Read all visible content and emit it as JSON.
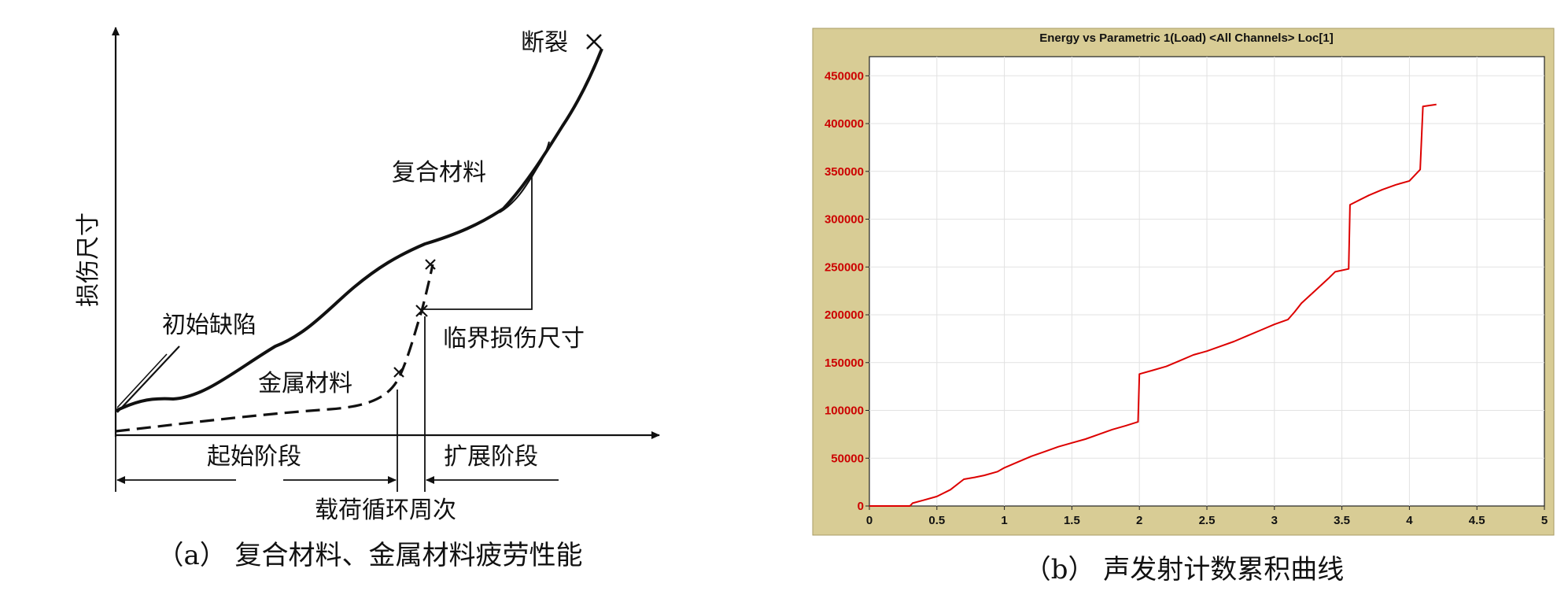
{
  "chart_data": [
    {
      "type": "line",
      "caption": "（a） 复合材料、金属材料疲劳性能",
      "ylabel": "损伤尺寸",
      "xlabel": "载荷循环周次",
      "annotations": {
        "fracture": "断裂",
        "composite": "复合材料",
        "initial_defect": "初始缺陷",
        "metal": "金属材料",
        "critical_size": "临界损伤尺寸",
        "initiation_stage": "起始阶段",
        "propagation_stage": "扩展阶段"
      },
      "series": [
        {
          "name": "复合材料",
          "style": "solid",
          "x": [
            0,
            0.05,
            0.1,
            0.2,
            0.28,
            0.4,
            0.5,
            0.6,
            0.7,
            0.78,
            0.84,
            0.9,
            1.0
          ],
          "y": [
            0.06,
            0.08,
            0.09,
            0.14,
            0.21,
            0.32,
            0.44,
            0.52,
            0.56,
            0.62,
            0.72,
            0.86,
            1.0
          ]
        },
        {
          "name": "金属材料",
          "style": "dashed",
          "x": [
            0,
            0.1,
            0.2,
            0.3,
            0.4,
            0.48,
            0.52,
            0.55,
            0.57,
            0.58
          ],
          "y": [
            0.01,
            0.025,
            0.04,
            0.055,
            0.075,
            0.12,
            0.2,
            0.34,
            0.44,
            0.5
          ]
        }
      ]
    },
    {
      "type": "line",
      "title": "Energy vs Parametric 1(Load) <All Channels> Loc[1]",
      "caption": "（b） 声发射计数累积曲线",
      "xlim": [
        0,
        5
      ],
      "ylim": [
        0,
        470000
      ],
      "x_ticks": [
        "0",
        "0.5",
        "1",
        "1.5",
        "2",
        "2.5",
        "3",
        "3.5",
        "4",
        "4.5",
        "5"
      ],
      "y_ticks": [
        "0",
        "50000",
        "100000",
        "150000",
        "200000",
        "250000",
        "300000",
        "350000",
        "400000",
        "450000"
      ],
      "grid": true,
      "colors": {
        "line": "#dd0000",
        "frame": "#d8cc95",
        "ytick": "#cc0000"
      },
      "series": [
        {
          "x": [
            0,
            0.3,
            0.32,
            0.4,
            0.5,
            0.6,
            0.7,
            0.78,
            0.85,
            0.95,
            1.0,
            1.1,
            1.2,
            1.3,
            1.4,
            1.5,
            1.6,
            1.7,
            1.8,
            1.9,
            1.99,
            2.0,
            2.1,
            2.2,
            2.3,
            2.4,
            2.5,
            2.6,
            2.7,
            2.8,
            2.9,
            3.0,
            3.1,
            3.15,
            3.2,
            3.3,
            3.4,
            3.45,
            3.55,
            3.56,
            3.6,
            3.7,
            3.8,
            3.9,
            4.0,
            4.08,
            4.1,
            4.15,
            4.2
          ],
          "y": [
            0,
            0,
            3000,
            6000,
            10000,
            17000,
            28000,
            30000,
            32000,
            36000,
            40000,
            46000,
            52000,
            57000,
            62000,
            66000,
            70000,
            75000,
            80000,
            84000,
            88000,
            138000,
            142000,
            146000,
            152000,
            158000,
            162000,
            167000,
            172000,
            178000,
            184000,
            190000,
            195000,
            203000,
            212000,
            225000,
            238000,
            245000,
            248000,
            315000,
            318000,
            325000,
            331000,
            336000,
            340000,
            352000,
            418000,
            419000,
            420000
          ]
        }
      ]
    }
  ]
}
